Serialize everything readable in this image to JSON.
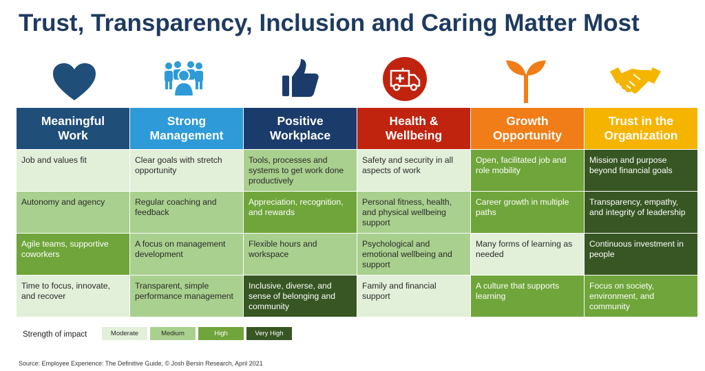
{
  "title": "Trust, Transparency, Inclusion and Caring Matter Most",
  "colors": {
    "heading": "#1e3a5f",
    "header_1": "#1f4e79",
    "header_2": "#2e9ad8",
    "header_3": "#1b3c6b",
    "header_4": "#c0230e",
    "header_5": "#f07d17",
    "header_6": "#f5b400",
    "moderate": "#e2efd9",
    "medium": "#a9d08e",
    "high": "#6fa53a",
    "very_high": "#375623"
  },
  "columns": [
    {
      "header": [
        "Meaningful",
        "Work"
      ],
      "icon": "heart-icon",
      "cells": [
        {
          "text": "Job and values fit",
          "level": "moderate"
        },
        {
          "text": "Autonomy and agency",
          "level": "medium"
        },
        {
          "text": "Agile teams, supportive coworkers",
          "level": "high"
        },
        {
          "text": "Time to focus, innovate, and recover",
          "level": "moderate"
        }
      ]
    },
    {
      "header": [
        "Strong",
        "Management"
      ],
      "icon": "team-icon",
      "cells": [
        {
          "text": "Clear goals with stretch opportunity",
          "level": "moderate"
        },
        {
          "text": "Regular coaching and feedback",
          "level": "medium"
        },
        {
          "text": "A focus on management development",
          "level": "medium"
        },
        {
          "text": "Transparent, simple performance management",
          "level": "medium"
        }
      ]
    },
    {
      "header": [
        "Positive",
        "Workplace"
      ],
      "icon": "thumbs-up-icon",
      "cells": [
        {
          "text": "Tools, processes and systems to get work done productively",
          "level": "medium"
        },
        {
          "text": "Appreciation, recognition, and rewards",
          "level": "high"
        },
        {
          "text": "Flexible hours and workspace",
          "level": "medium"
        },
        {
          "text": "Inclusive, diverse, and sense of belonging and community",
          "level": "very_high"
        }
      ]
    },
    {
      "header": [
        "Health &",
        "Wellbeing"
      ],
      "icon": "ambulance-icon",
      "cells": [
        {
          "text": "Safety and security in all aspects of work",
          "level": "moderate"
        },
        {
          "text": "Personal fitness, health, and physical wellbeing support",
          "level": "medium"
        },
        {
          "text": "Psychological and emotional wellbeing and support",
          "level": "medium"
        },
        {
          "text": "Family and financial support",
          "level": "moderate"
        }
      ]
    },
    {
      "header": [
        "Growth",
        "Opportunity"
      ],
      "icon": "sprout-icon",
      "cells": [
        {
          "text": "Open, facilitated job and role mobility",
          "level": "high"
        },
        {
          "text": "Career growth in multiple paths",
          "level": "high"
        },
        {
          "text": "Many forms of learning as needed",
          "level": "moderate"
        },
        {
          "text": "A culture that supports learning",
          "level": "high"
        }
      ]
    },
    {
      "header": [
        "Trust in the",
        "Organization"
      ],
      "icon": "handshake-icon",
      "cells": [
        {
          "text": "Mission and purpose beyond financial goals",
          "level": "very_high"
        },
        {
          "text": "Transparency, empathy, and integrity of leadership",
          "level": "very_high"
        },
        {
          "text": "Continuous investment in people",
          "level": "very_high"
        },
        {
          "text": "Focus on society, environment, and community",
          "level": "high"
        }
      ]
    }
  ],
  "legend": {
    "label": "Strength of impact",
    "items": [
      {
        "label": "Moderate",
        "level": "moderate"
      },
      {
        "label": "Medium",
        "level": "medium"
      },
      {
        "label": "High",
        "level": "high"
      },
      {
        "label": "Very High",
        "level": "very_high"
      }
    ]
  },
  "source": "Source: Employee Experience: The Definitive Guide, © Josh Bersin Research, April 2021"
}
